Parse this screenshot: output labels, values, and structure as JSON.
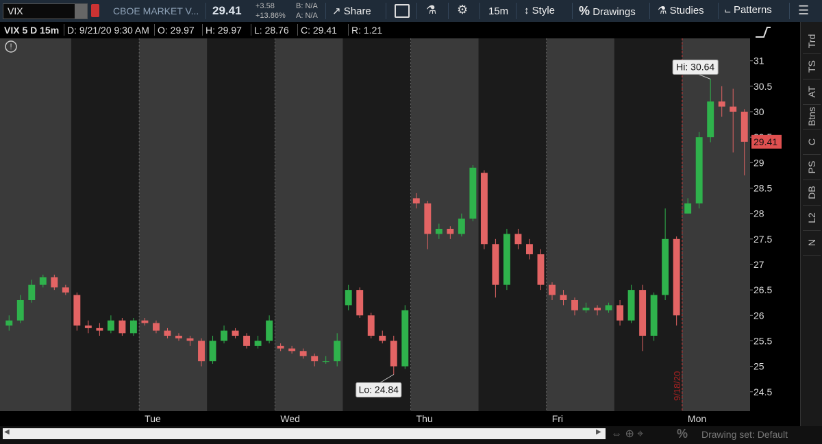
{
  "toolbar": {
    "symbol": "VIX",
    "description": "CBOE MARKET V...",
    "net_change": "+3.58",
    "pct_change": "+13.86%",
    "bid": "B: N/A",
    "ask": "A: N/A",
    "share": "Share",
    "aggregation": "15m",
    "style": "Style",
    "drawings": "Drawings",
    "studies": "Studies",
    "patterns": "Patterns"
  },
  "info_bar": [
    "VIX 5 D 15m",
    "D: 9/21/20 9:30 AM",
    "O: 29.97",
    "H: 29.97",
    "L: 28.76",
    "C: 29.41",
    "R: 1.21"
  ],
  "side_tabs": [
    "Trd",
    "TS",
    "AT",
    "Btns",
    "C",
    "PS",
    "DB",
    "L2",
    "N"
  ],
  "footer": {
    "drawing_set": "Drawing set: Default"
  },
  "chart_data": {
    "type": "candlestick",
    "up_color": "#2fb24c",
    "down_color": "#e36464",
    "categories": [
      null,
      null,
      null,
      null,
      null,
      null,
      null,
      null,
      null,
      null,
      null,
      null,
      "Tue",
      null,
      null,
      null,
      null,
      null,
      null,
      null,
      null,
      null,
      null,
      null,
      "Wed",
      null,
      null,
      null,
      null,
      null,
      null,
      null,
      null,
      null,
      null,
      null,
      "Thu",
      null,
      null,
      null,
      null,
      null,
      null,
      null,
      null,
      null,
      null,
      null,
      "Fri",
      null,
      null,
      null,
      null,
      null,
      null,
      null,
      null,
      null,
      null,
      null,
      "Mon",
      null,
      null,
      null,
      null,
      null
    ],
    "open": [
      25.8,
      25.9,
      26.3,
      26.6,
      26.75,
      26.55,
      26.4,
      25.8,
      25.75,
      25.7,
      25.9,
      25.65,
      25.9,
      25.85,
      25.7,
      25.6,
      25.55,
      25.5,
      25.1,
      25.5,
      25.7,
      25.6,
      25.4,
      25.5,
      25.4,
      25.35,
      25.3,
      25.2,
      25.1,
      25.1,
      26.2,
      26.5,
      26.0,
      25.6,
      25.5,
      25.0,
      28.3,
      28.2,
      27.6,
      27.7,
      27.6,
      27.9,
      28.8,
      27.4,
      26.6,
      27.6,
      27.4,
      27.2,
      26.6,
      26.4,
      26.3,
      26.1,
      26.15,
      26.1,
      26.2,
      25.9,
      26.5,
      25.6,
      26.4,
      27.5,
      28.0,
      28.2,
      29.5,
      30.2,
      30.1,
      30.0
    ],
    "high": [
      26.0,
      26.4,
      26.7,
      26.8,
      26.8,
      26.6,
      26.45,
      25.9,
      25.85,
      26.0,
      25.95,
      25.95,
      25.95,
      25.9,
      25.75,
      25.65,
      25.6,
      25.55,
      25.6,
      25.8,
      25.75,
      25.65,
      25.6,
      26.0,
      25.45,
      25.4,
      25.35,
      25.25,
      25.2,
      25.65,
      26.6,
      26.55,
      26.05,
      25.7,
      25.6,
      26.2,
      28.4,
      28.25,
      27.8,
      27.75,
      28.0,
      28.95,
      28.85,
      27.5,
      27.7,
      27.7,
      27.5,
      27.3,
      26.65,
      26.5,
      26.35,
      26.25,
      26.2,
      26.25,
      26.3,
      26.6,
      26.6,
      26.45,
      28.1,
      27.55,
      28.3,
      29.6,
      30.64,
      30.5,
      30.45,
      30.05
    ],
    "low": [
      25.7,
      25.85,
      26.25,
      26.55,
      26.5,
      26.4,
      25.7,
      25.65,
      25.6,
      25.65,
      25.6,
      25.6,
      25.8,
      25.65,
      25.55,
      25.5,
      25.4,
      25.0,
      25.05,
      25.45,
      25.55,
      25.35,
      25.35,
      25.45,
      25.3,
      25.25,
      25.15,
      25.0,
      25.05,
      25.0,
      26.1,
      25.95,
      25.55,
      25.45,
      24.84,
      24.95,
      28.1,
      27.3,
      27.5,
      27.5,
      27.55,
      27.85,
      27.3,
      26.35,
      26.5,
      27.3,
      27.1,
      26.5,
      26.3,
      26.2,
      26.0,
      26.05,
      26.0,
      26.05,
      25.8,
      25.85,
      25.3,
      25.5,
      26.3,
      25.8,
      28.0,
      28.1,
      29.4,
      29.9,
      29.2,
      28.75
    ],
    "close": [
      25.9,
      26.3,
      26.6,
      26.75,
      26.55,
      26.45,
      25.8,
      25.75,
      25.7,
      25.9,
      25.65,
      25.9,
      25.85,
      25.7,
      25.6,
      25.55,
      25.5,
      25.1,
      25.5,
      25.7,
      25.6,
      25.4,
      25.5,
      25.9,
      25.35,
      25.3,
      25.2,
      25.1,
      25.1,
      25.5,
      26.5,
      26.0,
      25.6,
      25.5,
      25.0,
      26.1,
      28.2,
      27.6,
      27.7,
      27.6,
      27.9,
      28.9,
      27.4,
      26.6,
      27.6,
      27.4,
      27.2,
      26.6,
      26.4,
      26.3,
      26.1,
      26.15,
      26.1,
      26.2,
      25.9,
      26.5,
      25.6,
      26.4,
      27.5,
      26.0,
      28.2,
      29.5,
      30.2,
      30.1,
      30.0,
      29.41
    ],
    "ylim": [
      24.12,
      31.44
    ],
    "yticks": [
      24.5,
      25,
      25.5,
      26,
      26.5,
      27,
      27.5,
      28,
      28.5,
      29,
      29.5,
      30,
      30.5,
      31
    ],
    "annotations": {
      "high": "Hi: 30.64",
      "low": "Lo: 24.84",
      "date_marker": "9/18/20"
    }
  }
}
